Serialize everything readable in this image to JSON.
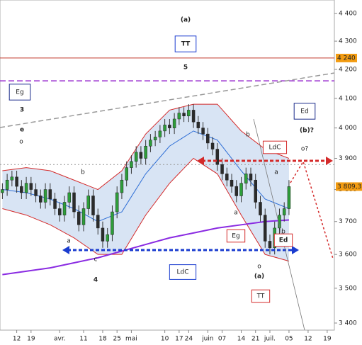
{
  "chart_data": {
    "type": "candlestick",
    "log": true,
    "xlim": [
      -0.5,
      69.5
    ],
    "ylim": [
      3380,
      4450
    ],
    "xticks": [
      {
        "value": 3,
        "label": "12"
      },
      {
        "value": 6,
        "label": "19"
      },
      {
        "value": 12,
        "label": "avr."
      },
      {
        "value": 17,
        "label": "11"
      },
      {
        "value": 21,
        "label": "18"
      },
      {
        "value": 24,
        "label": "25"
      },
      {
        "value": 27,
        "label": "mai"
      },
      {
        "value": 34,
        "label": "10"
      },
      {
        "value": 37,
        "label": "17"
      },
      {
        "value": 39,
        "label": "24"
      },
      {
        "value": 43,
        "label": "juin"
      },
      {
        "value": 46,
        "label": "07"
      },
      {
        "value": 50,
        "label": "14"
      },
      {
        "value": 53,
        "label": "21"
      },
      {
        "value": 56,
        "label": "juil."
      },
      {
        "value": 60,
        "label": "05"
      },
      {
        "value": 64,
        "label": "12"
      },
      {
        "value": 68,
        "label": "19"
      }
    ],
    "yticks": [
      {
        "value": 3400,
        "label": "3 400"
      },
      {
        "value": 3500,
        "label": "3 500"
      },
      {
        "value": 3600,
        "label": "3 600"
      },
      {
        "value": 3700,
        "label": "3 700"
      },
      {
        "value": 3800,
        "label": "3 800"
      },
      {
        "value": 3900,
        "label": "3 900"
      },
      {
        "value": 4000,
        "label": "4 000"
      },
      {
        "value": 4100,
        "label": "4 100"
      },
      {
        "value": 4200,
        "label": "4 200"
      },
      {
        "value": 4300,
        "label": "4 300"
      },
      {
        "value": 4400,
        "label": "4 400"
      }
    ],
    "up_color": "#2e9e3a",
    "down_color": "#2b2b2b",
    "open": [
      3790,
      3800,
      3830,
      3840,
      3810,
      3790,
      3820,
      3800,
      3780,
      3760,
      3800,
      3770,
      3740,
      3720,
      3760,
      3790,
      3730,
      3690,
      3740,
      3780,
      3720,
      3680,
      3640,
      3660,
      3730,
      3790,
      3830,
      3870,
      3890,
      3920,
      3900,
      3940,
      3960,
      3970,
      3990,
      4010,
      4000,
      4030,
      4050,
      4040,
      4060,
      4020,
      4000,
      3980,
      3950,
      3930,
      3880,
      3850,
      3830,
      3810,
      3780,
      3820,
      3850,
      3830,
      3760,
      3720,
      3640,
      3620,
      3680,
      3720,
      3740
    ],
    "high": [
      3820,
      3850,
      3860,
      3860,
      3830,
      3840,
      3840,
      3820,
      3800,
      3820,
      3820,
      3790,
      3760,
      3780,
      3810,
      3810,
      3750,
      3760,
      3800,
      3800,
      3740,
      3700,
      3680,
      3750,
      3810,
      3850,
      3890,
      3910,
      3940,
      3940,
      3960,
      3980,
      3990,
      4010,
      4030,
      4030,
      4050,
      4070,
      4070,
      4080,
      4080,
      4040,
      4020,
      4000,
      3970,
      3950,
      3900,
      3870,
      3850,
      3830,
      3840,
      3870,
      3870,
      3850,
      3780,
      3740,
      3660,
      3700,
      3740,
      3760,
      3830
    ],
    "low": [
      3770,
      3780,
      3810,
      3790,
      3770,
      3770,
      3780,
      3760,
      3740,
      3740,
      3750,
      3720,
      3700,
      3700,
      3740,
      3710,
      3670,
      3670,
      3720,
      3700,
      3660,
      3620,
      3620,
      3640,
      3710,
      3770,
      3810,
      3850,
      3870,
      3880,
      3880,
      3920,
      3940,
      3950,
      3970,
      3980,
      3980,
      4010,
      4020,
      4020,
      4000,
      3980,
      3960,
      3930,
      3910,
      3860,
      3830,
      3810,
      3790,
      3760,
      3760,
      3800,
      3810,
      3740,
      3700,
      3620,
      3600,
      3600,
      3660,
      3700,
      3720
    ],
    "close": [
      3800,
      3830,
      3840,
      3810,
      3790,
      3820,
      3800,
      3780,
      3760,
      3800,
      3770,
      3740,
      3720,
      3760,
      3790,
      3730,
      3690,
      3740,
      3780,
      3720,
      3680,
      3640,
      3660,
      3730,
      3790,
      3830,
      3870,
      3890,
      3920,
      3900,
      3940,
      3960,
      3970,
      3990,
      4010,
      4000,
      4030,
      4050,
      4040,
      4060,
      4020,
      4000,
      3980,
      3950,
      3930,
      3880,
      3850,
      3830,
      3810,
      3780,
      3820,
      3850,
      3830,
      3760,
      3720,
      3640,
      3620,
      3680,
      3720,
      3740,
      3809.31
    ],
    "last_label": "3 809,31",
    "band_x": [
      0,
      5,
      10,
      15,
      20,
      25,
      30,
      35,
      40,
      45,
      50,
      55,
      60
    ],
    "bands": [
      {
        "name": "upper",
        "color": "#d42a2a",
        "values": [
          3860,
          3870,
          3860,
          3830,
          3800,
          3860,
          3980,
          4060,
          4080,
          4080,
          3990,
          3930,
          3900
        ]
      },
      {
        "name": "lower",
        "color": "#d42a2a",
        "values": [
          3740,
          3720,
          3690,
          3650,
          3600,
          3600,
          3720,
          3820,
          3900,
          3850,
          3720,
          3600,
          3580
        ]
      },
      {
        "name": "middle",
        "color": "#2f6fd6",
        "values": [
          3800,
          3790,
          3770,
          3740,
          3700,
          3730,
          3850,
          3940,
          3990,
          3960,
          3860,
          3770,
          3740
        ]
      },
      {
        "name": "envelope",
        "color": "#8a2be2",
        "values": [
          3540,
          3550,
          3560,
          3575,
          3590,
          3610,
          3630,
          3650,
          3665,
          3680,
          3690,
          3700,
          3705
        ]
      }
    ],
    "band_fill": "#c8d8f0",
    "reference_lines": [
      {
        "value": 4240,
        "label": "4 240",
        "color": "#c0392b"
      },
      {
        "value": 4160,
        "color": "#9b30d0"
      },
      {
        "value": 3880,
        "color": "#999999"
      }
    ],
    "annotations": [
      {
        "text": "(a)",
        "color": "#7a3b12"
      },
      {
        "text": "TT",
        "color": "#1a3ccf"
      },
      {
        "text": "5",
        "color": "#d42a2a"
      },
      {
        "text": "Eg",
        "color": "#1a2a8a"
      },
      {
        "text": "3",
        "color": "#d42a2a"
      },
      {
        "text": "e",
        "color": "#2e7d32"
      },
      {
        "text": "Ed",
        "color": "#1a2a8a"
      },
      {
        "text": "(b)?",
        "color": "#2e7d32"
      },
      {
        "text": "o?",
        "color": "#333333"
      },
      {
        "text": "LdC",
        "color": "#d42a2a"
      },
      {
        "text": "4",
        "color": "#d42a2a"
      },
      {
        "text": "LdC",
        "color": "#1a3ccf"
      },
      {
        "text": "Eg",
        "color": "#d42a2a"
      },
      {
        "text": "Ed",
        "color": "#d42a2a"
      },
      {
        "text": "(a)",
        "color": "#2e7d32"
      },
      {
        "text": "TT",
        "color": "#d42a2a"
      },
      {
        "text": "b",
        "color": "#222222"
      },
      {
        "text": "a",
        "color": "#222222"
      },
      {
        "text": "c",
        "color": "#222222"
      },
      {
        "text": "b",
        "color": "#222222"
      },
      {
        "text": "a",
        "color": "#222222"
      },
      {
        "text": "b",
        "color": "#222222"
      },
      {
        "text": "a",
        "color": "#222222"
      },
      {
        "text": "o",
        "color": "#222222"
      },
      {
        "text": "o",
        "color": "#222222"
      }
    ]
  }
}
